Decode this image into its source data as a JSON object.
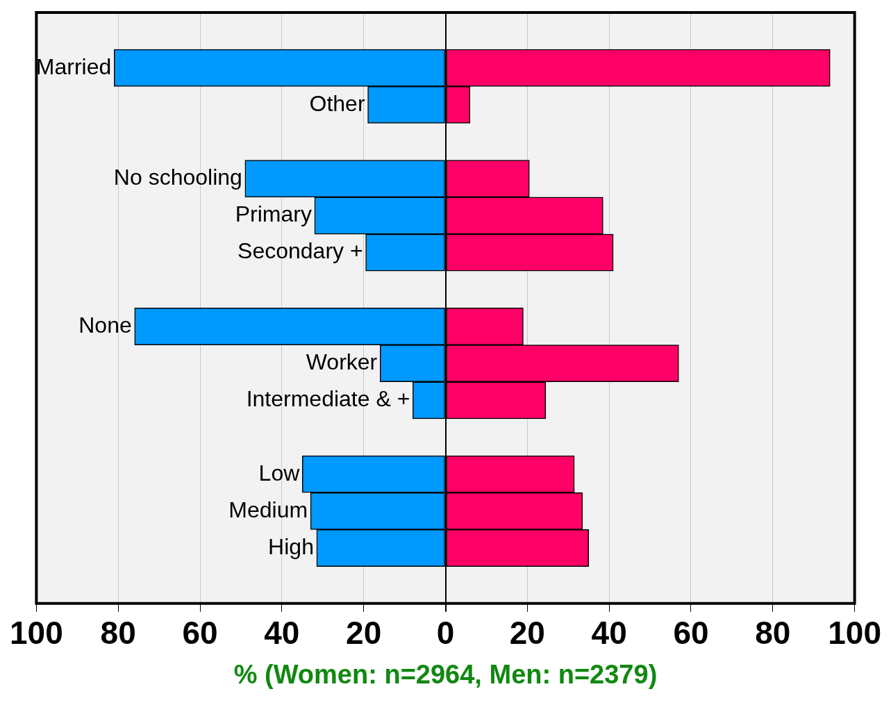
{
  "chart_data": {
    "type": "bar",
    "orientation": "horizontal",
    "stacked": true,
    "xlabel": "% (Women: n=2964, Men: n=2379)",
    "categories": [
      null,
      "Married",
      "Other",
      null,
      "No schooling",
      "Primary",
      "Secondary +",
      null,
      "None",
      "Worker",
      "Intermediate & +",
      null,
      "Low",
      "Medium",
      "High",
      null
    ],
    "series": [
      {
        "color": "#0099ff",
        "values": [
          null,
          -81,
          -19,
          null,
          -49,
          -32,
          -19.5,
          null,
          -76,
          -16,
          -8,
          null,
          -35,
          -33,
          -31.5,
          null
        ]
      },
      {
        "color": "#ff0066",
        "values": [
          null,
          94,
          6,
          null,
          20.5,
          38.5,
          41,
          null,
          19,
          57,
          24.5,
          null,
          31.5,
          33.5,
          35,
          null
        ]
      }
    ],
    "xlim": [
      -100,
      100
    ],
    "xticks": [
      {
        "value": -100,
        "label": "100"
      },
      {
        "value": -80,
        "label": "80"
      },
      {
        "value": -60,
        "label": "60"
      },
      {
        "value": -40,
        "label": "40"
      },
      {
        "value": -20,
        "label": "20"
      },
      0,
      20,
      40,
      60,
      80,
      100
    ],
    "grid": "x"
  }
}
